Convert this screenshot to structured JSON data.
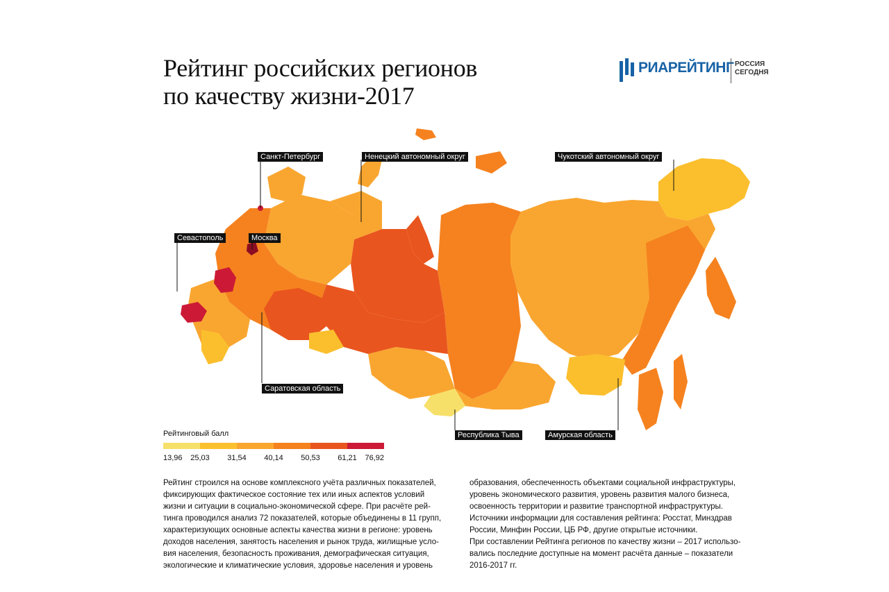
{
  "title": {
    "line1": "Рейтинг российских регионов",
    "line2": "по качеству жизни-2017"
  },
  "logo": {
    "brand": "РИАРЕЙТИНГ",
    "sub_line1": "РОССИЯ",
    "sub_line2": "СЕГОДНЯ",
    "color": "#1762a6"
  },
  "map": {
    "callouts": [
      {
        "label": "Санкт-Петербург"
      },
      {
        "label": "Ненецкий автономный округ"
      },
      {
        "label": "Чукотский автономный округ"
      },
      {
        "label": "Севастополь"
      },
      {
        "label": "Москва"
      },
      {
        "label": "Саратовская область"
      },
      {
        "label": "Республика Тыва"
      },
      {
        "label": "Амурская область"
      }
    ]
  },
  "legend": {
    "title": "Рейтинговый балл",
    "ticks": [
      "13,96",
      "25,03",
      "31,54",
      "40,14",
      "50,53",
      "61,21",
      "76,92"
    ],
    "colors": [
      "#f7e06a",
      "#fbc02d",
      "#f9a630",
      "#f5821f",
      "#e9551e",
      "#cc1a36"
    ]
  },
  "description": {
    "col1": [
      "Рейтинг строился на основе комплексного учёта различных показателей,",
      "фиксирующих фактическое состояние тех или иных аспектов условий",
      "жизни и ситуации в социально-экономической сфере. При расчёте рей-",
      "тинга проводился анализ 72 показателей, которые объединены в 11 групп,",
      "характеризующих основные аспекты качества жизни в регионе: уровень",
      "доходов населения, занятость населения и рынок труда, жилищные усло-",
      "вия населения, безопасность проживания, демографическая ситуация,",
      "экологические и климатические условия, здоровье населения и уровень"
    ],
    "col2": [
      "образования, обеспеченность объектами социальной инфраструктуры,",
      "уровень экономического развития, уровень развития малого бизнеса,",
      "освоенность территории и развитие транспортной инфраструктуры.",
      "Источники информации для составления рейтинга: Росстат, Минздрав",
      "России, Минфин России, ЦБ РФ, другие открытые источники.",
      "При составлении Рейтинга регионов по качеству жизни – 2017 использо-",
      "вались последние доступные на момент расчёта данные – показатели",
      "2016-2017 гг."
    ]
  }
}
